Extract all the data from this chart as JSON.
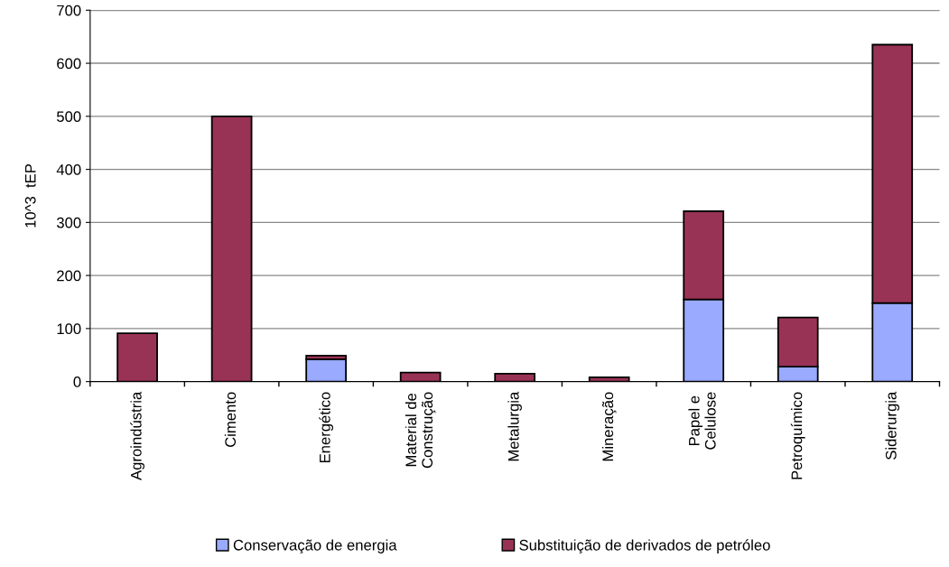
{
  "chart_data": {
    "type": "bar",
    "stacked": true,
    "ylabel": "10^3  tEP",
    "categories": [
      "Agroindústria",
      "Cimento",
      "Energético",
      "Material de\nConstrução",
      "Metalurgia",
      "Mineração",
      "Papel e\nCelulose",
      "Petroquímico",
      "Siderurgia"
    ],
    "series": [
      {
        "name": "Conservação de energia",
        "color": "#99aaff",
        "values": [
          0,
          0,
          42,
          0,
          null,
          0,
          155,
          28,
          148
        ]
      },
      {
        "name": "Substituição de derivados de petróleo",
        "color": "#993355",
        "values": [
          91,
          500,
          7,
          17,
          15,
          8,
          166,
          93,
          487
        ]
      }
    ],
    "ylim": [
      0,
      700
    ],
    "yticks": [
      0,
      100,
      200,
      300,
      400,
      500,
      600,
      700
    ],
    "grid": "y",
    "legend": "bottom"
  }
}
